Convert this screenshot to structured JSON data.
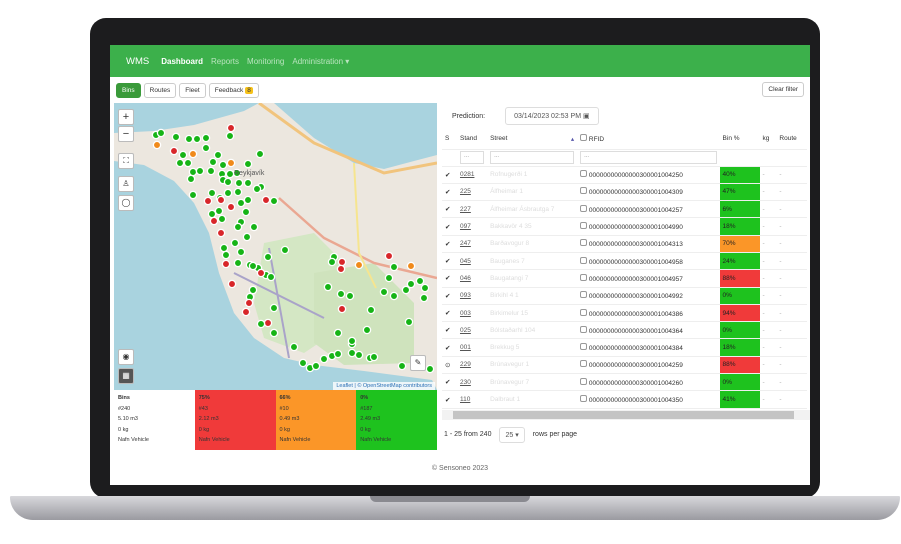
{
  "nav": {
    "brand": "WMS",
    "items": [
      "Dashboard",
      "Reports",
      "Monitoring",
      "Administration ▾"
    ]
  },
  "toolbar": {
    "buttons": [
      "Bins",
      "Routes",
      "Fleet",
      "Feedback"
    ],
    "feedback_badge": "8",
    "clear_filter": "Clear filter"
  },
  "map": {
    "zoom_in": "+",
    "zoom_out": "−",
    "city_label": "Reykjavík",
    "attribution": "Leaflet | © OpenStreetMap contributors"
  },
  "legend": [
    {
      "title": "Bins",
      "count": "#240",
      "volume": "5.10 m3",
      "weight": "0 kg",
      "vehicle": "Nafn Vehicle",
      "color": "#ffffff"
    },
    {
      "title": "75%",
      "count": "#43",
      "volume": "2.12 m3",
      "weight": "0 kg",
      "vehicle": "Nafn Vehicle",
      "color": "#f03a3a"
    },
    {
      "title": "66%",
      "count": "#10",
      "volume": "0.49 m3",
      "weight": "0 kg",
      "vehicle": "Nafn Vehicle",
      "color": "#fb9628"
    },
    {
      "title": "0%",
      "count": "#187",
      "volume": "2.49 m3",
      "weight": "0 kg",
      "vehicle": "Nafn Vehicle",
      "color": "#1ec21e"
    }
  ],
  "prediction": {
    "label": "Prediction:",
    "value": "03/14/2023 02:53 PM"
  },
  "table": {
    "headers": [
      "S",
      "Stand",
      "Street",
      "RFID",
      "Bin %",
      "kg",
      "Route"
    ],
    "filter_placeholder": "...",
    "rows": [
      {
        "s": "✔",
        "stand": "0281",
        "street": "Rofnugerði 1",
        "rfid": "00000000000000300001004250",
        "pct": "40%",
        "color": "#1ec21e",
        "kg": "-",
        "route": "-"
      },
      {
        "s": "✔",
        "stand": "225",
        "street": "Álfheimar 1",
        "rfid": "00000000000000300001004309",
        "pct": "47%",
        "color": "#1ec21e",
        "kg": "-",
        "route": "-"
      },
      {
        "s": "✔",
        "stand": "227",
        "street": "Álfheimar Ásbrautga 7",
        "rfid": "00000000000000300001004257",
        "pct": "6%",
        "color": "#1ec21e",
        "kg": "-",
        "route": "-"
      },
      {
        "s": "✔",
        "stand": "097",
        "street": "Bakkavör 4 35",
        "rfid": "00000000000000300001004990",
        "pct": "18%",
        "color": "#1ec21e",
        "kg": "-",
        "route": "-"
      },
      {
        "s": "✔",
        "stand": "247",
        "street": "Barðavogur 8",
        "rfid": "00000000000000300001004313",
        "pct": "70%",
        "color": "#fb9628",
        "kg": "-",
        "route": "-"
      },
      {
        "s": "✔",
        "stand": "045",
        "street": "Bauganes 7",
        "rfid": "00000000000000300001004958",
        "pct": "24%",
        "color": "#1ec21e",
        "kg": "-",
        "route": "-"
      },
      {
        "s": "✔",
        "stand": "046",
        "street": "Baugatangi 7",
        "rfid": "00000000000000300001004957",
        "pct": "88%",
        "color": "#f03a3a",
        "kg": "-",
        "route": "-"
      },
      {
        "s": "✔",
        "stand": "093",
        "street": "Birkihl 4 1",
        "rfid": "00000000000000300001004992",
        "pct": "0%",
        "color": "#1ec21e",
        "kg": "-",
        "route": "-"
      },
      {
        "s": "✔",
        "stand": "003",
        "street": "Birkimelur 15",
        "rfid": "00000000000000300001004386",
        "pct": "94%",
        "color": "#f03a3a",
        "kg": "-",
        "route": "-"
      },
      {
        "s": "✔",
        "stand": "025",
        "street": "Bólstaðarhl 104",
        "rfid": "00000000000000300001004364",
        "pct": "0%",
        "color": "#1ec21e",
        "kg": "-",
        "route": "-"
      },
      {
        "s": "✔",
        "stand": "001",
        "street": "Brekkug 5",
        "rfid": "00000000000000300001004384",
        "pct": "18%",
        "color": "#1ec21e",
        "kg": "-",
        "route": "-"
      },
      {
        "s": "⊙",
        "stand": "229",
        "street": "Brúnavegur 1",
        "rfid": "00000000000000300001004259",
        "pct": "88%",
        "color": "#f03a3a",
        "kg": "-",
        "route": "-"
      },
      {
        "s": "✔",
        "stand": "230",
        "street": "Brúnavegur 7",
        "rfid": "00000000000000300001004260",
        "pct": "0%",
        "color": "#1ec21e",
        "kg": "-",
        "route": "-"
      },
      {
        "s": "✔",
        "stand": "110",
        "street": "Dalbraut 1",
        "rfid": "00000000000000300001004350",
        "pct": "41%",
        "color": "#1ec21e",
        "kg": "-",
        "route": "-"
      }
    ]
  },
  "pager": {
    "range": "1 - 25 from 240",
    "per_page": "25 ▾",
    "per_page_label": "rows per page"
  },
  "footer": "© Sensoneo 2023"
}
